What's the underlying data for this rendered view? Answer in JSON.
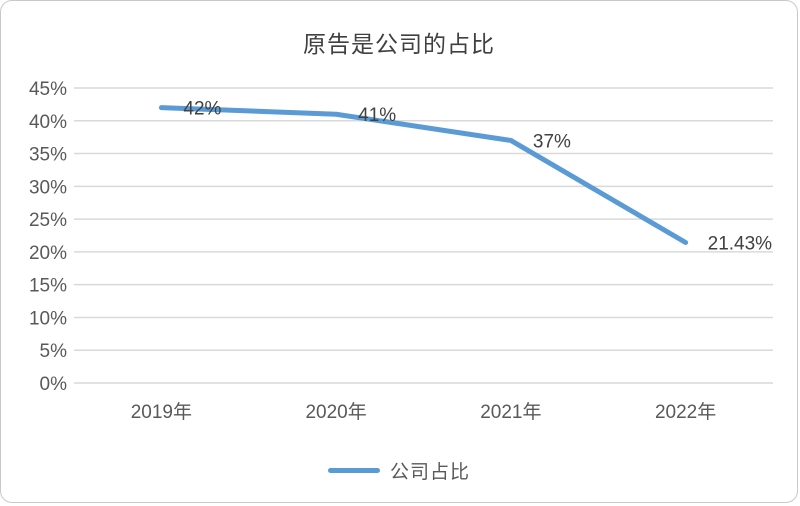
{
  "chart_data": {
    "type": "line",
    "title": "原告是公司的占比",
    "categories": [
      "2019年",
      "2020年",
      "2021年",
      "2022年"
    ],
    "series": [
      {
        "name": "公司占比",
        "values": [
          42,
          41,
          37,
          21.43
        ]
      }
    ],
    "point_labels": [
      "42%",
      "41%",
      "37%",
      "21.43%"
    ],
    "y_ticks": [
      "0%",
      "5%",
      "10%",
      "15%",
      "20%",
      "25%",
      "30%",
      "35%",
      "40%",
      "45%"
    ],
    "ylim": [
      0,
      45
    ],
    "y_tick_step": 5,
    "grid": "horizontal",
    "legend_position": "bottom",
    "colors": {
      "line": "#5B9BD5",
      "gridline": "#D9D9D9",
      "axis_text": "#595959",
      "data_label": "#404040",
      "title_text": "#404040",
      "card_border": "#C9C9C9"
    }
  }
}
